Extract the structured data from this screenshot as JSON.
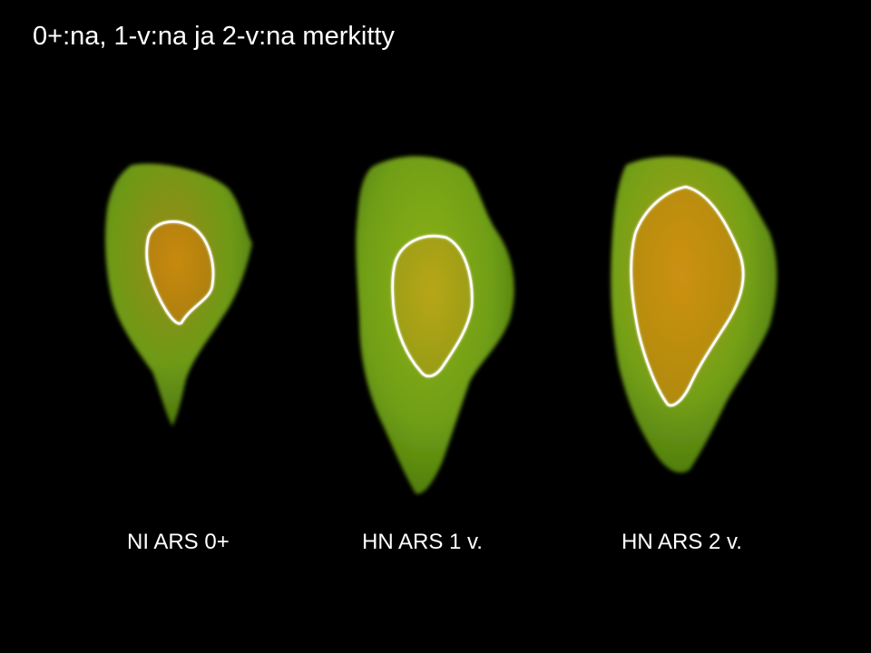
{
  "slide": {
    "title": "0+:na, 1-v:na ja 2-v:na merkitty",
    "background_color": "#000000",
    "text_color": "#ffffff",
    "marking_color": "#ffffff",
    "otoliths": [
      {
        "label": "NI ARS 0+",
        "outer_color": "#6e9a16",
        "core_color": "#d08a10"
      },
      {
        "label": "HN ARS 1 v.",
        "outer_color": "#6f9e14",
        "core_color": "#c2a418"
      },
      {
        "label": "HN ARS 2 v.",
        "outer_color": "#74a016",
        "core_color": "#d38f12"
      }
    ]
  }
}
